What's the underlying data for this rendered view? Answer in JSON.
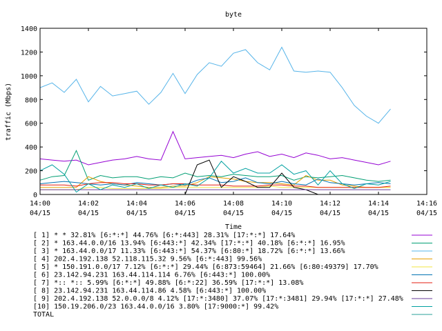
{
  "chart_data": {
    "type": "line",
    "title": "byte",
    "xlabel": "Time",
    "ylabel": "traffic (Mbps)",
    "ylim": [
      0,
      1400
    ],
    "yticks": [
      0,
      200,
      400,
      600,
      800,
      1000,
      1200,
      1400
    ],
    "xlim": [
      "14:00",
      "14:16"
    ],
    "xticks": [
      {
        "time": "14:00",
        "date": "04/15"
      },
      {
        "time": "14:02",
        "date": "04/15"
      },
      {
        "time": "14:04",
        "date": "04/15"
      },
      {
        "time": "14:06",
        "date": "04/15"
      },
      {
        "time": "14:08",
        "date": "04/15"
      },
      {
        "time": "14:10",
        "date": "04/15"
      },
      {
        "time": "14:12",
        "date": "04/15"
      },
      {
        "time": "14:14",
        "date": "04/15"
      },
      {
        "time": "14:16",
        "date": "04/15"
      }
    ],
    "grid": false,
    "legend_position": "bottom",
    "x": [
      "14:00:00",
      "14:00:30",
      "14:01:00",
      "14:01:30",
      "14:02:00",
      "14:02:30",
      "14:03:00",
      "14:03:30",
      "14:04:00",
      "14:04:30",
      "14:05:00",
      "14:05:30",
      "14:06:00",
      "14:06:30",
      "14:07:00",
      "14:07:30",
      "14:08:00",
      "14:08:30",
      "14:09:00",
      "14:09:30",
      "14:10:00",
      "14:10:30",
      "14:11:00",
      "14:11:30",
      "14:12:00",
      "14:12:30",
      "14:13:00",
      "14:13:30",
      "14:14:00",
      "14:14:30"
    ],
    "series": [
      {
        "name": "[ 1] * * 32.81%  [6:*:*] 44.76% [6:*:443] 28.31% [17:*:*] 17.64%",
        "color": "#9400d3",
        "values": [
          300,
          290,
          280,
          290,
          250,
          270,
          290,
          300,
          320,
          300,
          290,
          530,
          300,
          310,
          320,
          330,
          310,
          340,
          360,
          320,
          340,
          310,
          350,
          330,
          300,
          310,
          290,
          270,
          250,
          280
        ]
      },
      {
        "name": "[ 2] * 163.44.0.0/16 13.94%  [6:443:*] 42.34% [17:*:*] 40.18% [6:*:*] 16.95%",
        "color": "#009e73",
        "values": [
          120,
          150,
          160,
          370,
          120,
          160,
          140,
          150,
          150,
          130,
          150,
          140,
          180,
          150,
          160,
          150,
          170,
          160,
          150,
          150,
          160,
          120,
          150,
          140,
          150,
          160,
          140,
          120,
          110,
          120
        ]
      },
      {
        "name": "[ 3] * 163.44.0.0/17 11.33%  [6:443:*] 54.37% [6:80:*] 18.72% [6:*:*] 13.66%",
        "color": "#56b4e9",
        "values": [
          900,
          940,
          860,
          970,
          780,
          910,
          830,
          850,
          870,
          760,
          860,
          1020,
          850,
          1010,
          1110,
          1080,
          1190,
          1220,
          1110,
          1050,
          1240,
          1040,
          1030,
          1040,
          1030,
          900,
          750,
          660,
          600,
          720
        ]
      },
      {
        "name": "[ 4] 202.4.192.138 52.118.115.32 9.56%  [6:*:443] 99.56%",
        "color": "#e69f00",
        "values": [
          60,
          60,
          60,
          60,
          150,
          110,
          90,
          80,
          70,
          60,
          60,
          70,
          70,
          100,
          150,
          140,
          130,
          110,
          100,
          100,
          90,
          80,
          160,
          120,
          120,
          80,
          70,
          60,
          60,
          60
        ]
      },
      {
        "name": "[ 5] * 150.191.0.0/17 7.12%  [6:*:*] 29.44% [6:873:59464] 21.66% [6:80:49379] 17.70%",
        "color": "#f0e442",
        "values": [
          40,
          40,
          40,
          40,
          60,
          60,
          50,
          50,
          50,
          50,
          50,
          60,
          60,
          60,
          60,
          60,
          60,
          60,
          60,
          70,
          60,
          60,
          60,
          60,
          60,
          60,
          60,
          60,
          60,
          60
        ]
      },
      {
        "name": "[ 6] 23.142.94.231 163.44.114.114 6.76%  [6:443:*] 100.00%",
        "color": "#0072b2",
        "values": [
          90,
          100,
          110,
          100,
          90,
          80,
          90,
          80,
          100,
          90,
          80,
          90,
          80,
          120,
          140,
          100,
          110,
          140,
          100,
          90,
          110,
          90,
          80,
          130,
          100,
          90,
          80,
          90,
          100,
          90
        ]
      },
      {
        "name": "[ 7] *:: *:: 5.99%  [6:*:*] 49.88% [6:*:22] 36.59% [17:*:*] 13.08%",
        "color": "#e51e10",
        "values": [
          80,
          80,
          80,
          70,
          90,
          100,
          100,
          90,
          90,
          80,
          80,
          90,
          90,
          80,
          80,
          80,
          70,
          70,
          70,
          80,
          80,
          70,
          70,
          60,
          60,
          60,
          60,
          60,
          60,
          70
        ]
      },
      {
        "name": "[ 8] 23.142.94.231 163.44.114.86 4.58%  [6:443:*] 100.00%",
        "color": "#000000",
        "values": [
          0,
          0,
          0,
          0,
          0,
          0,
          0,
          0,
          0,
          0,
          0,
          0,
          0,
          250,
          290,
          60,
          150,
          110,
          60,
          60,
          180,
          60,
          40,
          0,
          0,
          0,
          0,
          0,
          0,
          0
        ]
      },
      {
        "name": "[ 9] 202.4.192.138 52.0.0.0/8 4.12%  [17:*:3480] 37.07% [17:*:3481] 29.94% [17:*:*] 27.48%",
        "color": "#6a3d9a",
        "values": [
          40,
          40,
          40,
          40,
          40,
          40,
          40,
          40,
          40,
          40,
          40,
          40,
          40,
          40,
          40,
          40,
          40,
          40,
          40,
          40,
          40,
          40,
          40,
          40,
          40,
          40,
          40,
          40,
          40,
          40
        ]
      },
      {
        "name": "[10] 150.19.206.0/23 163.44.0.0/16 3.80%  [17:9000:*] 99.42%",
        "color": "#00a0a0",
        "values": [
          200,
          250,
          170,
          20,
          90,
          40,
          80,
          60,
          90,
          50,
          80,
          60,
          90,
          70,
          140,
          280,
          180,
          220,
          180,
          180,
          250,
          170,
          200,
          80,
          200,
          90,
          50,
          90,
          80,
          110
        ]
      }
    ],
    "total_label": "TOTAL",
    "total_color": "#2aa198"
  }
}
